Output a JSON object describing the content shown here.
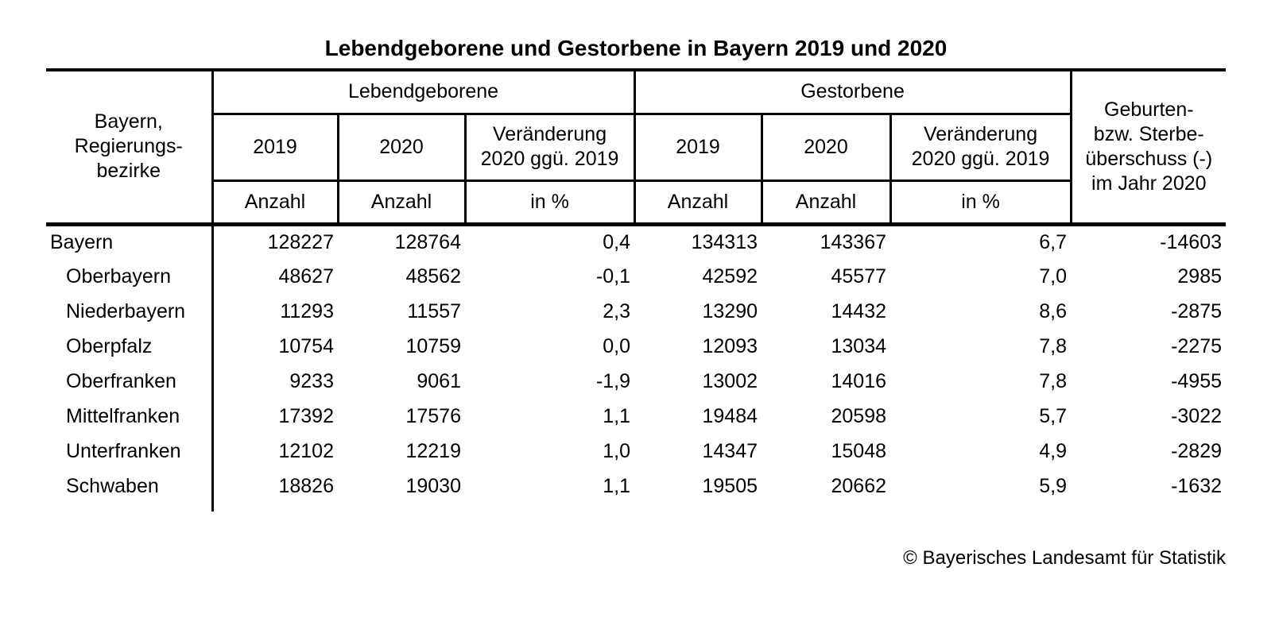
{
  "chart_data": {
    "type": "table",
    "title": "Lebendgeborene und Gestorbene in Bayern 2019 und 2020",
    "header": {
      "corner": "Bayern,\nRegierungs-\nbezirke",
      "groups": [
        {
          "label": "Lebendgeborene"
        },
        {
          "label": "Gestorbene"
        }
      ],
      "balance": "Geburten-\nbzw. Sterbe-\nüberschuss (-)\nim Jahr 2020",
      "subcolumns": [
        {
          "year": "2019",
          "unit": "Anzahl"
        },
        {
          "year": "2020",
          "unit": "Anzahl"
        },
        {
          "year": "Veränderung\n2020 ggü. 2019",
          "unit": "in %"
        },
        {
          "year": "2019",
          "unit": "Anzahl"
        },
        {
          "year": "2020",
          "unit": "Anzahl"
        },
        {
          "year": "Veränderung\n2020 ggü. 2019",
          "unit": "in %"
        }
      ]
    },
    "rows": [
      {
        "region": "Bayern",
        "indent": false,
        "values": [
          "128227",
          "128764",
          "0,4",
          "134313",
          "143367",
          "6,7",
          "-14603"
        ]
      },
      {
        "region": "Oberbayern",
        "indent": true,
        "values": [
          "48627",
          "48562",
          "-0,1",
          "42592",
          "45577",
          "7,0",
          "2985"
        ]
      },
      {
        "region": "Niederbayern",
        "indent": true,
        "values": [
          "11293",
          "11557",
          "2,3",
          "13290",
          "14432",
          "8,6",
          "-2875"
        ]
      },
      {
        "region": "Oberpfalz",
        "indent": true,
        "values": [
          "10754",
          "10759",
          "0,0",
          "12093",
          "13034",
          "7,8",
          "-2275"
        ]
      },
      {
        "region": "Oberfranken",
        "indent": true,
        "values": [
          "9233",
          "9061",
          "-1,9",
          "13002",
          "14016",
          "7,8",
          "-4955"
        ]
      },
      {
        "region": "Mittelfranken",
        "indent": true,
        "values": [
          "17392",
          "17576",
          "1,1",
          "19484",
          "20598",
          "5,7",
          "-3022"
        ]
      },
      {
        "region": "Unterfranken",
        "indent": true,
        "values": [
          "12102",
          "12219",
          "1,0",
          "14347",
          "15048",
          "4,9",
          "-2829"
        ]
      },
      {
        "region": "Schwaben",
        "indent": true,
        "values": [
          "18826",
          "19030",
          "1,1",
          "19505",
          "20662",
          "5,9",
          "-1632"
        ]
      }
    ],
    "footer": "© Bayerisches Landesamt für Statistik"
  }
}
